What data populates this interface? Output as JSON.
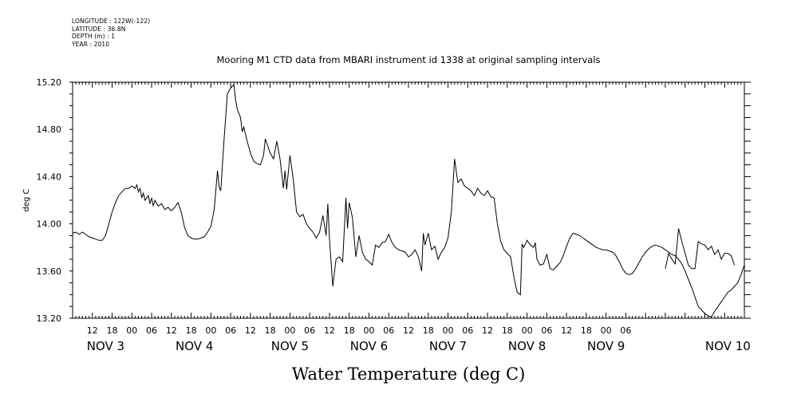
{
  "header": {
    "metadata": [
      "LONGITUDE : 122W(-122)",
      "LATITUDE : 36.8N",
      "DEPTH (m) : 1",
      "YEAR : 2010"
    ]
  },
  "chart_data": {
    "type": "line",
    "title": "Mooring M1 CTD data from MBARI instrument id 1338 at original sampling intervals",
    "xlabel": "Water Temperature (deg C)",
    "ylabel": "deg C",
    "ylim": [
      13.2,
      15.2
    ],
    "yticks": [
      "15.20",
      "14.80",
      "14.40",
      "14.00",
      "13.60",
      "13.20"
    ],
    "xlim_hours": [
      6,
      210
    ],
    "x_unit": "hours since NOV 3 00:00",
    "hour_ticks": [
      "12",
      "18",
      "00",
      "06",
      "12",
      "18",
      "00",
      "06",
      "12",
      "18",
      "00",
      "06",
      "12",
      "18",
      "00",
      "06",
      "12",
      "18",
      "00",
      "06",
      "12",
      "18",
      "00",
      "06",
      "12",
      "18",
      "00",
      "06"
    ],
    "day_labels": [
      "NOV 3",
      "NOV 4",
      "NOV 5",
      "NOV 6",
      "NOV 7",
      "NOV 8",
      "NOV 9",
      "NOV 10"
    ],
    "grid": false,
    "series": [
      {
        "values": [
          [
            6,
            13.92
          ],
          [
            7,
            13.93
          ],
          [
            8,
            13.91
          ],
          [
            9,
            13.93
          ],
          [
            10,
            13.91
          ],
          [
            11,
            13.89
          ],
          [
            12,
            13.88
          ],
          [
            13,
            13.87
          ],
          [
            14,
            13.86
          ],
          [
            15,
            13.86
          ],
          [
            16,
            13.9
          ],
          [
            17,
            14.0
          ],
          [
            18,
            14.1
          ],
          [
            19,
            14.18
          ],
          [
            20,
            14.24
          ],
          [
            21,
            14.27
          ],
          [
            22,
            14.3
          ],
          [
            23,
            14.3
          ],
          [
            24,
            14.32
          ],
          [
            25,
            14.3
          ],
          [
            25.5,
            14.33
          ],
          [
            26,
            14.27
          ],
          [
            26.5,
            14.3
          ],
          [
            27,
            14.22
          ],
          [
            27.5,
            14.26
          ],
          [
            28,
            14.2
          ],
          [
            29,
            14.24
          ],
          [
            29.5,
            14.17
          ],
          [
            30,
            14.22
          ],
          [
            30.5,
            14.15
          ],
          [
            31,
            14.2
          ],
          [
            32,
            14.15
          ],
          [
            33,
            14.17
          ],
          [
            34,
            14.12
          ],
          [
            35,
            14.14
          ],
          [
            36,
            14.11
          ],
          [
            37,
            14.14
          ],
          [
            38,
            14.18
          ],
          [
            39,
            14.1
          ],
          [
            40,
            13.97
          ],
          [
            41,
            13.9
          ],
          [
            42,
            13.88
          ],
          [
            43,
            13.87
          ],
          [
            44,
            13.87
          ],
          [
            45,
            13.88
          ],
          [
            46,
            13.89
          ],
          [
            47,
            13.93
          ],
          [
            48,
            13.98
          ],
          [
            49,
            14.12
          ],
          [
            50,
            14.45
          ],
          [
            50.5,
            14.31
          ],
          [
            51,
            14.28
          ],
          [
            52,
            14.72
          ],
          [
            53,
            15.1
          ],
          [
            54,
            15.15
          ],
          [
            55,
            15.18
          ],
          [
            55.5,
            15.05
          ],
          [
            56,
            14.97
          ],
          [
            57,
            14.9
          ],
          [
            57.5,
            14.78
          ],
          [
            58,
            14.82
          ],
          [
            59,
            14.7
          ],
          [
            60,
            14.6
          ],
          [
            61,
            14.53
          ],
          [
            62,
            14.51
          ],
          [
            63,
            14.5
          ],
          [
            64,
            14.58
          ],
          [
            64.5,
            14.72
          ],
          [
            65,
            14.68
          ],
          [
            66,
            14.6
          ],
          [
            67,
            14.55
          ],
          [
            68,
            14.7
          ],
          [
            69,
            14.55
          ],
          [
            70,
            14.3
          ],
          [
            70.5,
            14.45
          ],
          [
            71,
            14.29
          ],
          [
            72,
            14.58
          ],
          [
            72.5,
            14.48
          ],
          [
            73,
            14.38
          ],
          [
            74,
            14.1
          ],
          [
            75,
            14.06
          ],
          [
            76,
            14.08
          ],
          [
            77,
            14.0
          ],
          [
            78,
            13.96
          ],
          [
            79,
            13.93
          ],
          [
            80,
            13.88
          ],
          [
            81,
            13.93
          ],
          [
            82,
            14.07
          ],
          [
            83,
            13.9
          ],
          [
            83.5,
            14.17
          ],
          [
            84,
            13.88
          ],
          [
            85,
            13.47
          ],
          [
            86,
            13.7
          ],
          [
            87,
            13.72
          ],
          [
            88,
            13.68
          ],
          [
            89,
            14.22
          ],
          [
            89.5,
            13.96
          ],
          [
            90,
            14.18
          ],
          [
            91,
            14.05
          ],
          [
            92,
            13.72
          ],
          [
            93,
            13.9
          ],
          [
            94,
            13.76
          ],
          [
            95,
            13.7
          ],
          [
            96,
            13.68
          ],
          [
            97,
            13.65
          ],
          [
            98,
            13.82
          ],
          [
            99,
            13.8
          ],
          [
            100,
            13.84
          ],
          [
            101,
            13.85
          ],
          [
            102,
            13.91
          ],
          [
            103,
            13.84
          ],
          [
            104,
            13.8
          ],
          [
            105,
            13.78
          ],
          [
            106,
            13.77
          ],
          [
            107,
            13.76
          ],
          [
            108,
            13.72
          ],
          [
            109,
            13.74
          ],
          [
            110,
            13.78
          ],
          [
            111,
            13.72
          ],
          [
            112,
            13.6
          ],
          [
            112.5,
            13.92
          ],
          [
            113,
            13.82
          ],
          [
            114,
            13.92
          ],
          [
            115,
            13.78
          ],
          [
            116,
            13.81
          ],
          [
            117,
            13.7
          ],
          [
            118,
            13.76
          ],
          [
            119,
            13.8
          ],
          [
            120,
            13.88
          ],
          [
            121,
            14.1
          ],
          [
            122,
            14.55
          ],
          [
            122.5,
            14.45
          ],
          [
            123,
            14.35
          ],
          [
            124,
            14.38
          ],
          [
            125,
            14.32
          ],
          [
            126,
            14.3
          ],
          [
            127,
            14.28
          ],
          [
            128,
            14.24
          ],
          [
            129,
            14.3
          ],
          [
            130,
            14.26
          ],
          [
            131,
            14.24
          ],
          [
            132,
            14.28
          ],
          [
            133,
            14.23
          ],
          [
            134,
            14.22
          ],
          [
            135,
            14.0
          ],
          [
            136,
            13.85
          ],
          [
            137,
            13.78
          ],
          [
            138,
            13.75
          ],
          [
            139,
            13.72
          ],
          [
            140,
            13.55
          ],
          [
            141,
            13.42
          ],
          [
            142,
            13.4
          ],
          [
            142.5,
            13.83
          ],
          [
            143,
            13.8
          ],
          [
            144,
            13.86
          ],
          [
            145,
            13.82
          ],
          [
            146,
            13.8
          ],
          [
            146.5,
            13.84
          ],
          [
            147,
            13.7
          ],
          [
            148,
            13.65
          ],
          [
            149,
            13.66
          ],
          [
            150,
            13.74
          ],
          [
            151,
            13.62
          ],
          [
            152,
            13.61
          ],
          [
            153,
            13.64
          ],
          [
            154,
            13.67
          ],
          [
            155,
            13.73
          ],
          [
            156,
            13.81
          ],
          [
            157,
            13.88
          ],
          [
            158,
            13.92
          ],
          [
            159,
            13.91
          ],
          [
            160,
            13.9
          ],
          [
            161,
            13.88
          ],
          [
            162,
            13.86
          ],
          [
            163,
            13.84
          ],
          [
            164,
            13.82
          ],
          [
            165,
            13.8
          ],
          [
            166,
            13.79
          ],
          [
            167,
            13.78
          ],
          [
            168,
            13.78
          ],
          [
            169,
            13.77
          ],
          [
            170,
            13.76
          ],
          [
            171,
            13.73
          ],
          [
            172,
            13.68
          ],
          [
            173,
            13.62
          ],
          [
            174,
            13.58
          ],
          [
            175,
            13.57
          ],
          [
            176,
            13.58
          ],
          [
            177,
            13.62
          ],
          [
            178,
            13.67
          ],
          [
            179,
            13.72
          ],
          [
            180,
            13.76
          ],
          [
            181,
            13.79
          ],
          [
            182,
            13.81
          ],
          [
            183,
            13.82
          ],
          [
            184,
            13.81
          ],
          [
            185,
            13.8
          ],
          [
            186,
            13.78
          ],
          [
            187,
            13.76
          ],
          [
            188,
            13.74
          ],
          [
            189,
            13.73
          ],
          [
            190,
            13.7
          ],
          [
            191,
            13.66
          ],
          [
            192,
            13.6
          ],
          [
            193,
            13.53
          ],
          [
            194,
            13.46
          ],
          [
            195,
            13.38
          ],
          [
            196,
            13.3
          ],
          [
            197,
            13.27
          ],
          [
            198,
            13.24
          ],
          [
            199,
            13.22
          ],
          [
            200,
            13.21
          ],
          [
            201,
            13.26
          ],
          [
            202,
            13.3
          ],
          [
            203,
            13.34
          ],
          [
            204,
            13.38
          ],
          [
            205,
            13.42
          ],
          [
            206,
            13.44
          ],
          [
            207,
            13.47
          ],
          [
            208,
            13.5
          ],
          [
            209,
            13.57
          ],
          [
            210,
            13.65
          ]
        ]
      },
      {
        "values": [
          [
            186,
            13.62
          ],
          [
            187,
            13.75
          ],
          [
            188,
            13.7
          ],
          [
            189,
            13.66
          ],
          [
            190,
            13.96
          ],
          [
            191,
            13.85
          ],
          [
            192,
            13.75
          ],
          [
            193,
            13.65
          ],
          [
            194,
            13.62
          ],
          [
            195,
            13.62
          ],
          [
            196,
            13.85
          ],
          [
            197,
            13.83
          ],
          [
            198,
            13.82
          ],
          [
            199,
            13.78
          ],
          [
            200,
            13.81
          ],
          [
            201,
            13.74
          ],
          [
            202,
            13.78
          ],
          [
            203,
            13.7
          ],
          [
            204,
            13.75
          ],
          [
            205,
            13.75
          ],
          [
            206,
            13.73
          ],
          [
            207,
            13.65
          ]
        ]
      }
    ]
  }
}
